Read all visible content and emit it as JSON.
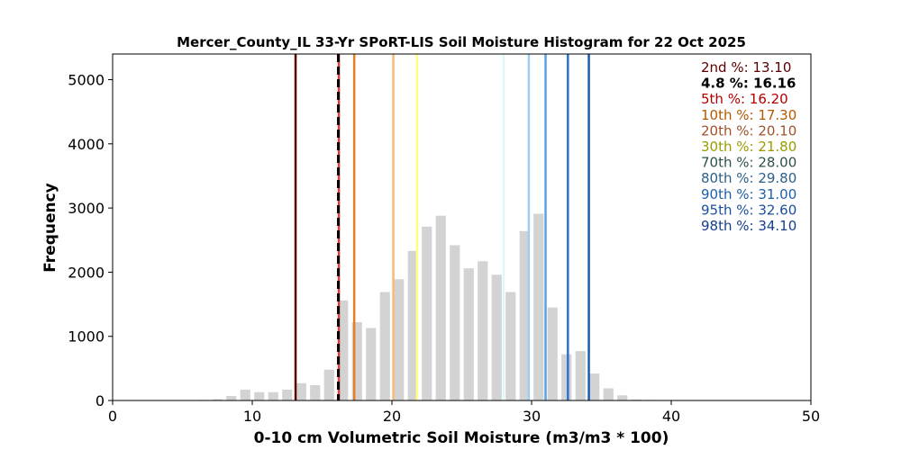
{
  "chart_data": {
    "type": "bar",
    "title": "Mercer_County_IL 33-Yr SPoRT-LIS Soil Moisture Histogram for 22 Oct 2025",
    "xlabel": "0-10 cm Volumetric Soil Moisture (m3/m3 * 100)",
    "ylabel": "Frequency",
    "xlim": [
      0,
      50
    ],
    "ylim": [
      0,
      5400
    ],
    "xticks": [
      "0",
      "10",
      "20",
      "30",
      "40",
      "50"
    ],
    "yticks": [
      "0",
      "1000",
      "2000",
      "3000",
      "4000",
      "5000"
    ],
    "bar_color": "#d3d3d3",
    "bins": [
      {
        "x": 5.5,
        "value": 5
      },
      {
        "x": 6.5,
        "value": 10
      },
      {
        "x": 7.5,
        "value": 20
      },
      {
        "x": 8.5,
        "value": 70
      },
      {
        "x": 9.5,
        "value": 170
      },
      {
        "x": 10.5,
        "value": 130
      },
      {
        "x": 11.5,
        "value": 130
      },
      {
        "x": 12.5,
        "value": 170
      },
      {
        "x": 13.5,
        "value": 270
      },
      {
        "x": 14.5,
        "value": 240
      },
      {
        "x": 15.5,
        "value": 480
      },
      {
        "x": 16.5,
        "value": 1560
      },
      {
        "x": 17.5,
        "value": 1220
      },
      {
        "x": 18.5,
        "value": 1130
      },
      {
        "x": 19.5,
        "value": 1690
      },
      {
        "x": 20.5,
        "value": 1890
      },
      {
        "x": 21.5,
        "value": 2330
      },
      {
        "x": 22.5,
        "value": 2710
      },
      {
        "x": 23.5,
        "value": 2880
      },
      {
        "x": 24.5,
        "value": 2420
      },
      {
        "x": 25.5,
        "value": 2060
      },
      {
        "x": 26.5,
        "value": 2170
      },
      {
        "x": 27.5,
        "value": 1960
      },
      {
        "x": 28.5,
        "value": 1690
      },
      {
        "x": 29.5,
        "value": 2640
      },
      {
        "x": 30.5,
        "value": 2910
      },
      {
        "x": 31.5,
        "value": 1450
      },
      {
        "x": 32.5,
        "value": 720
      },
      {
        "x": 33.5,
        "value": 770
      },
      {
        "x": 34.5,
        "value": 420
      },
      {
        "x": 35.5,
        "value": 190
      },
      {
        "x": 36.5,
        "value": 80
      },
      {
        "x": 37.5,
        "value": 15
      },
      {
        "x": 38.5,
        "value": 10
      },
      {
        "x": 39.5,
        "value": 5
      }
    ],
    "percentile_lines": [
      {
        "label": "2nd %",
        "value": 13.1,
        "display": "2nd %: 13.10",
        "color": "#5c0000",
        "style": "solid"
      },
      {
        "label": "5th %",
        "value": 16.2,
        "display": "5th %: 16.20",
        "color": "#e03c3c",
        "style": "solid"
      },
      {
        "label": "10th %",
        "value": 17.3,
        "display": "10th %: 17.30",
        "color": "#e67e22",
        "style": "solid"
      },
      {
        "label": "20th %",
        "value": 20.1,
        "display": "20th %: 20.10",
        "color": "#f5b97a",
        "style": "solid"
      },
      {
        "label": "30th %",
        "value": 21.8,
        "display": "30th %: 21.80",
        "color": "#ffff80",
        "style": "solid"
      },
      {
        "label": "70th %",
        "value": 28.0,
        "display": "70th %: 28.00",
        "color": "#e0f7fa",
        "style": "solid"
      },
      {
        "label": "80th %",
        "value": 29.8,
        "display": "80th %: 29.80",
        "color": "#9fcdf0",
        "style": "solid"
      },
      {
        "label": "90th %",
        "value": 31.0,
        "display": "90th %: 31.00",
        "color": "#5aa2e6",
        "style": "solid"
      },
      {
        "label": "95th %",
        "value": 32.6,
        "display": "95th %: 32.60",
        "color": "#2a74cf",
        "style": "solid"
      },
      {
        "label": "98th %",
        "value": 34.1,
        "display": "98th %: 34.10",
        "color": "#1b5bb8",
        "style": "solid"
      }
    ],
    "current_line": {
      "label": "4.8 %",
      "value": 16.16,
      "color": "#000000",
      "style": "dashed"
    },
    "legend": {
      "placement": "top-right",
      "entries": [
        {
          "text": "2nd %: 13.10",
          "color": "#5c0000"
        },
        {
          "text": "4.8 %: 16.16",
          "color": "#000000",
          "bold": true
        },
        {
          "text": "5th %: 16.20",
          "color": "#b30000"
        },
        {
          "text": "10th %: 17.30",
          "color": "#b35900"
        },
        {
          "text": "20th %: 20.10",
          "color": "#a0522d"
        },
        {
          "text": "30th %: 21.80",
          "color": "#9b9b00"
        },
        {
          "text": "70th %: 28.00",
          "color": "#2f4f4f"
        },
        {
          "text": "80th %: 29.80",
          "color": "#2c5f8a"
        },
        {
          "text": "90th %: 31.00",
          "color": "#1f5fa8"
        },
        {
          "text": "95th %: 32.60",
          "color": "#1b4f9c"
        },
        {
          "text": "98th %: 34.10",
          "color": "#163f8a"
        }
      ]
    },
    "grid": false
  }
}
